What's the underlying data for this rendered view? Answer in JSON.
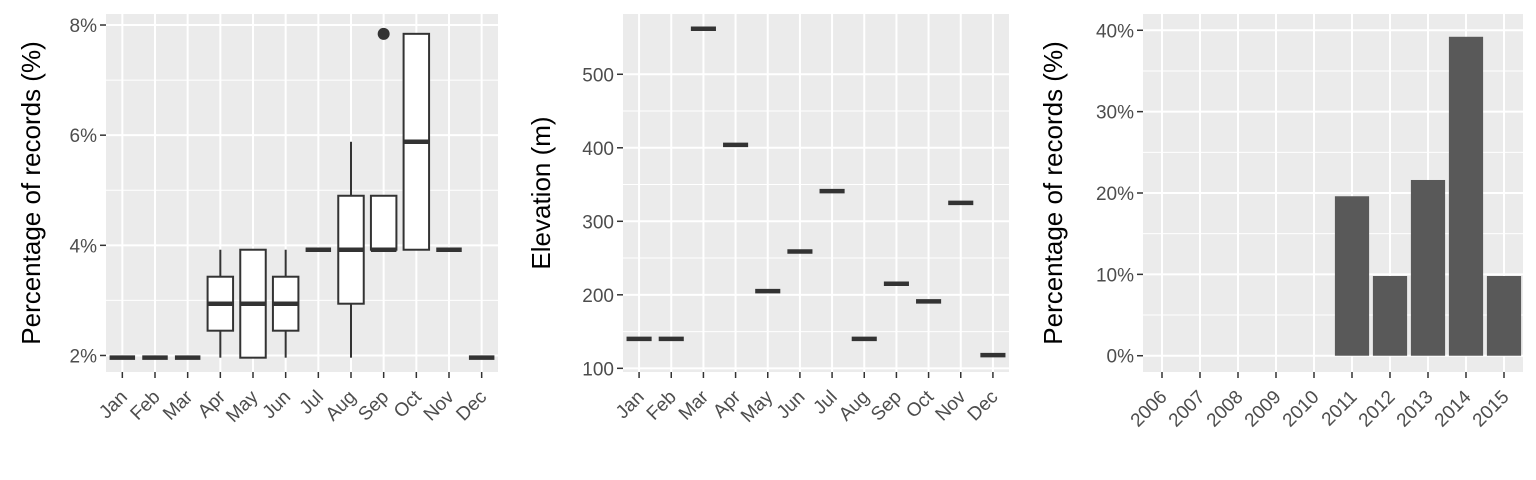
{
  "chart_data": [
    {
      "type": "box",
      "xlabel": "",
      "ylabel": "Percentage of records (%)",
      "ylim": [
        1.7,
        8.2
      ],
      "yticks": [
        2,
        4,
        6,
        8
      ],
      "ytick_labels": [
        "2%",
        "4%",
        "6%",
        "8%"
      ],
      "categories": [
        "Jan",
        "Feb",
        "Mar",
        "Apr",
        "May",
        "Jun",
        "Jul",
        "Aug",
        "Sep",
        "Oct",
        "Nov",
        "Dec"
      ],
      "boxes": [
        {
          "min": 1.96,
          "q1": 1.96,
          "median": 1.96,
          "q3": 1.96,
          "max": 1.96,
          "outliers": []
        },
        {
          "min": 1.96,
          "q1": 1.96,
          "median": 1.96,
          "q3": 1.96,
          "max": 1.96,
          "outliers": []
        },
        {
          "min": 1.96,
          "q1": 1.96,
          "median": 1.96,
          "q3": 1.96,
          "max": 1.96,
          "outliers": []
        },
        {
          "min": 1.96,
          "q1": 2.45,
          "median": 2.94,
          "q3": 3.43,
          "max": 3.92,
          "outliers": []
        },
        {
          "min": 1.96,
          "q1": 1.96,
          "median": 2.94,
          "q3": 3.92,
          "max": 3.92,
          "outliers": []
        },
        {
          "min": 1.96,
          "q1": 2.45,
          "median": 2.94,
          "q3": 3.43,
          "max": 3.92,
          "outliers": []
        },
        {
          "min": 3.92,
          "q1": 3.92,
          "median": 3.92,
          "q3": 3.92,
          "max": 3.92,
          "outliers": []
        },
        {
          "min": 1.96,
          "q1": 2.94,
          "median": 3.92,
          "q3": 4.9,
          "max": 5.88,
          "outliers": []
        },
        {
          "min": 3.92,
          "q1": 3.92,
          "median": 3.92,
          "q3": 4.9,
          "max": 4.9,
          "outliers": [
            7.84
          ]
        },
        {
          "min": 3.92,
          "q1": 3.92,
          "median": 5.88,
          "q3": 7.84,
          "max": 7.84,
          "outliers": []
        },
        {
          "min": 3.92,
          "q1": 3.92,
          "median": 3.92,
          "q3": 3.92,
          "max": 3.92,
          "outliers": []
        },
        {
          "min": 1.96,
          "q1": 1.96,
          "median": 1.96,
          "q3": 1.96,
          "max": 1.96,
          "outliers": []
        }
      ]
    },
    {
      "type": "box",
      "xlabel": "",
      "ylabel": "Elevation (m)",
      "ylim": [
        95,
        582
      ],
      "yticks": [
        100,
        200,
        300,
        400,
        500
      ],
      "ytick_labels": [
        "100",
        "200",
        "300",
        "400",
        "500"
      ],
      "categories": [
        "Jan",
        "Feb",
        "Mar",
        "Apr",
        "May",
        "Jun",
        "Jul",
        "Aug",
        "Sep",
        "Oct",
        "Nov",
        "Dec"
      ],
      "values": [
        140,
        140,
        562,
        404,
        205,
        259,
        341,
        140,
        215,
        191,
        325,
        118
      ]
    },
    {
      "type": "bar",
      "xlabel": "",
      "ylabel": "Percentage of records (%)",
      "ylim": [
        -2,
        42
      ],
      "yticks": [
        0,
        10,
        20,
        30,
        40
      ],
      "ytick_labels": [
        "0%",
        "10%",
        "20%",
        "30%",
        "40%"
      ],
      "categories": [
        "2006",
        "2007",
        "2008",
        "2009",
        "2010",
        "2011",
        "2012",
        "2013",
        "2014",
        "2015"
      ],
      "values": [
        0,
        0,
        0,
        0,
        0,
        19.6,
        9.8,
        21.6,
        39.2,
        9.8
      ]
    }
  ]
}
